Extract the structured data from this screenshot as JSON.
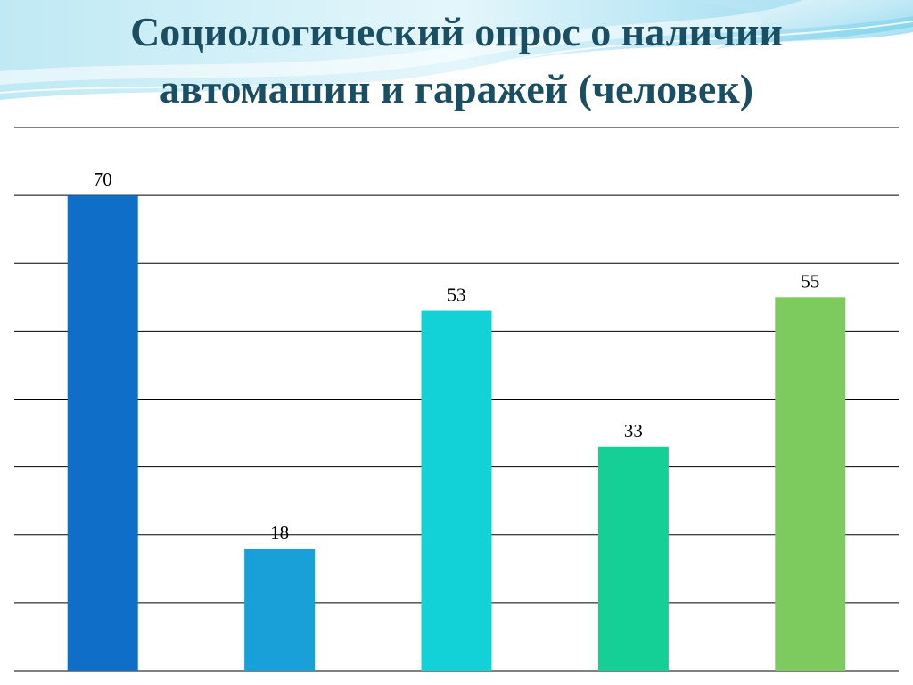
{
  "slide": {
    "title_line1": "Социологический опрос о наличии",
    "title_line2": "автомашин и гаражей (человек)"
  },
  "chart_data": {
    "type": "bar",
    "title": "Социологический опрос о наличии автомашин и гаражей (человек)",
    "xlabel": "",
    "ylabel": "",
    "ylim": [
      0,
      80
    ],
    "gridlines": [
      0,
      10,
      20,
      30,
      40,
      50,
      60,
      70,
      80
    ],
    "grid": true,
    "legend": "none",
    "series": [
      {
        "values": [
          70,
          18,
          53,
          33,
          55
        ],
        "colors": [
          "#0e6ec8",
          "#1aa0d8",
          "#12d2d8",
          "#14cf96",
          "#7dcb5f"
        ]
      }
    ],
    "value_labels": [
      "70",
      "18",
      "53",
      "33",
      "55"
    ]
  },
  "theme": {
    "title_color": "#1a4f63",
    "grid_color": "#000000",
    "wave_color_light": "#c8ecf5",
    "wave_color_mid": "#7fd0ea"
  }
}
